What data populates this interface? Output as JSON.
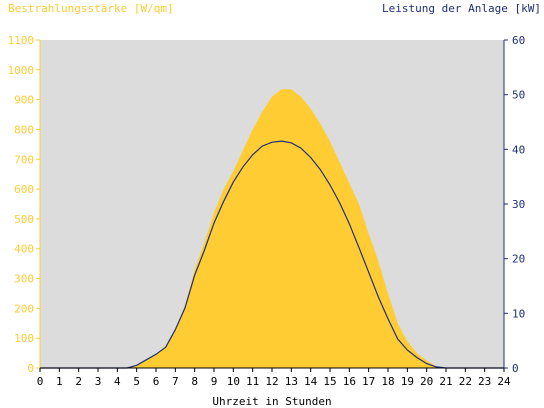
{
  "chart_data": {
    "type": "area",
    "ylabel_left": "Bestrahlungsstärke [W/qm]",
    "ylabel_right": "Leistung der Anlage [kW]",
    "xlabel": "Uhrzeit in Stunden",
    "x_ticks": [
      "0",
      "1",
      "2",
      "3",
      "4",
      "5",
      "6",
      "7",
      "8",
      "9",
      "10",
      "11",
      "12",
      "13",
      "14",
      "15",
      "16",
      "17",
      "18",
      "19",
      "20",
      "21",
      "22",
      "23",
      "24"
    ],
    "y_left_ticks": [
      "0",
      "100",
      "200",
      "300",
      "400",
      "500",
      "600",
      "700",
      "800",
      "900",
      "1000",
      "1100"
    ],
    "y_right_ticks": [
      "0",
      "10",
      "20",
      "30",
      "40",
      "50",
      "60"
    ],
    "xlim": [
      0,
      24
    ],
    "ylim_left": [
      0,
      1100
    ],
    "ylim_right": [
      0,
      60
    ],
    "grid": false,
    "colors": {
      "irradiance": "#ffcc33",
      "power": "#1e2f78",
      "plot_background": "#dcdcdc",
      "left_axis": "#ffcc33",
      "right_axis": "#1e2f78"
    },
    "series": [
      {
        "axis": "left",
        "style": "area",
        "x": [
          0,
          4.5,
          5,
          5.5,
          6,
          6.5,
          7,
          7.5,
          8,
          8.5,
          9,
          9.5,
          10,
          10.5,
          11,
          11.5,
          12,
          12.5,
          13,
          13.5,
          14,
          14.5,
          15,
          15.5,
          16,
          16.5,
          17,
          17.5,
          18,
          18.5,
          19,
          19.5,
          20,
          20.5,
          21,
          24
        ],
        "values": [
          0,
          0,
          8,
          25,
          45,
          75,
          130,
          210,
          330,
          420,
          520,
          600,
          660,
          730,
          800,
          860,
          910,
          935,
          935,
          910,
          870,
          820,
          760,
          690,
          620,
          550,
          450,
          360,
          250,
          150,
          90,
          50,
          25,
          5,
          0,
          0
        ]
      },
      {
        "axis": "right",
        "style": "line",
        "x": [
          0,
          4.5,
          5,
          5.5,
          6,
          6.5,
          7,
          7.5,
          8,
          8.5,
          9,
          9.5,
          10,
          10.5,
          11,
          11.5,
          12,
          12.5,
          13,
          13.5,
          14,
          14.5,
          15,
          15.5,
          16,
          16.5,
          17,
          17.5,
          18,
          18.5,
          19,
          19.5,
          20,
          20.5,
          21,
          24
        ],
        "values": [
          0,
          0,
          0.5,
          1.5,
          2.5,
          3.8,
          7,
          11,
          17,
          21.5,
          26.5,
          30.5,
          34,
          36.8,
          39,
          40.6,
          41.3,
          41.5,
          41.2,
          40.2,
          38.5,
          36.3,
          33.5,
          30.2,
          26.4,
          22,
          17.5,
          13,
          9,
          5.3,
          3.3,
          1.9,
          0.8,
          0.2,
          0,
          0
        ]
      }
    ]
  }
}
